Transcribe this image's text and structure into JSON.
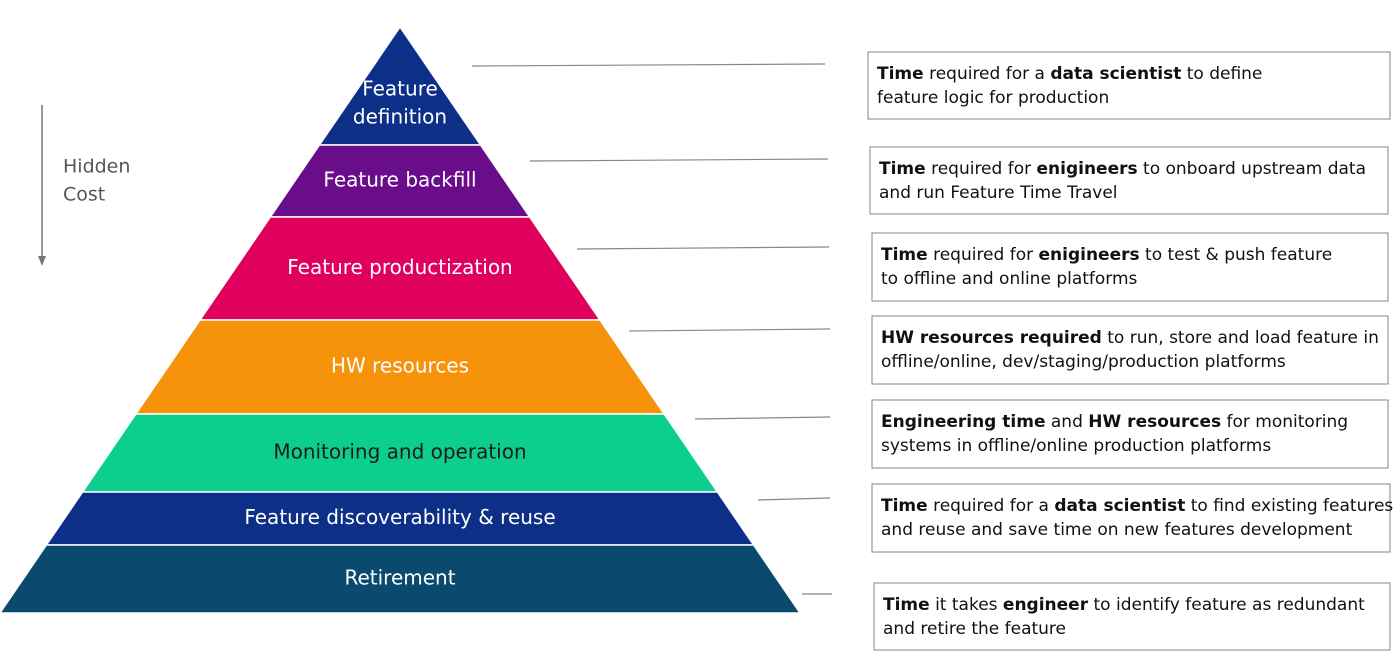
{
  "hidden_cost": [
    "Hidden",
    "Cost"
  ],
  "levels": [
    {
      "label_lines": [
        "Feature",
        "definition"
      ],
      "color": "#0d2f87",
      "text_color": "#ffffff"
    },
    {
      "label_lines": [
        "Feature backfill"
      ],
      "color": "#6a0d8a",
      "text_color": "#ffffff"
    },
    {
      "label_lines": [
        "Feature productization"
      ],
      "color": "#e0005e",
      "text_color": "#ffffff"
    },
    {
      "label_lines": [
        "HW resources"
      ],
      "color": "#f7930a",
      "text_color": "#ffffff"
    },
    {
      "label_lines": [
        "Monitoring and operation"
      ],
      "color": "#0ccf8f",
      "text_color": "#1a1a1a"
    },
    {
      "label_lines": [
        "Feature discoverability & reuse"
      ],
      "color": "#0d2f87",
      "text_color": "#ffffff"
    },
    {
      "label_lines": [
        "Retirement"
      ],
      "color": "#0a4a6e",
      "text_color": "#ffffff"
    }
  ],
  "descriptions": [
    {
      "lines": [
        [
          {
            "text": "Time",
            "bold": true
          },
          {
            "text": " required for a ",
            "bold": false
          },
          {
            "text": "data scientist",
            "bold": true
          },
          {
            "text": " to define",
            "bold": false
          }
        ],
        [
          {
            "text": "feature logic for production",
            "bold": false
          }
        ]
      ]
    },
    {
      "lines": [
        [
          {
            "text": "Time",
            "bold": true
          },
          {
            "text": " required for ",
            "bold": false
          },
          {
            "text": "enigineers",
            "bold": true
          },
          {
            "text": " to onboard upstream data",
            "bold": false
          }
        ],
        [
          {
            "text": "and run Feature Time Travel",
            "bold": false
          }
        ]
      ]
    },
    {
      "lines": [
        [
          {
            "text": "Time",
            "bold": true
          },
          {
            "text": " required for ",
            "bold": false
          },
          {
            "text": "enigineers",
            "bold": true
          },
          {
            "text": " to test & push feature",
            "bold": false
          }
        ],
        [
          {
            "text": "to offline and online platforms",
            "bold": false
          }
        ]
      ]
    },
    {
      "lines": [
        [
          {
            "text": "HW resources required",
            "bold": true
          },
          {
            "text": " to run, store and load feature in",
            "bold": false
          }
        ],
        [
          {
            "text": "offline/online, dev/staging/production platforms",
            "bold": false
          }
        ]
      ]
    },
    {
      "lines": [
        [
          {
            "text": "Engineering time",
            "bold": true
          },
          {
            "text": " and ",
            "bold": false
          },
          {
            "text": "HW resources",
            "bold": true
          },
          {
            "text": " for monitoring",
            "bold": false
          }
        ],
        [
          {
            "text": "systems in offline/online production platforms",
            "bold": false
          }
        ]
      ]
    },
    {
      "lines": [
        [
          {
            "text": "Time",
            "bold": true
          },
          {
            "text": " required for a ",
            "bold": false
          },
          {
            "text": "data scientist",
            "bold": true
          },
          {
            "text": " to find existing features",
            "bold": false
          }
        ],
        [
          {
            "text": "and reuse and save time on new features development",
            "bold": false
          }
        ]
      ]
    },
    {
      "lines": [
        [
          {
            "text": "Time",
            "bold": true
          },
          {
            "text": " it takes ",
            "bold": false
          },
          {
            "text": "engineer",
            "bold": true
          },
          {
            "text": " to identify feature as redundant",
            "bold": false
          }
        ],
        [
          {
            "text": "and retire the feature",
            "bold": false
          }
        ]
      ]
    }
  ]
}
